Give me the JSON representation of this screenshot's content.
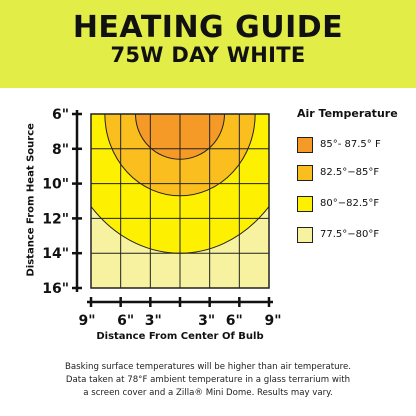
{
  "header": {
    "title": "HEATING GUIDE",
    "subtitle": "75W DAY WHITE",
    "background_color": "#e2ed48"
  },
  "chart_data": {
    "type": "heatmap",
    "ylabel": "Distance From Heat Source",
    "xlabel": "Distance From Center Of Bulb",
    "y_ticks": [
      "6\"",
      "8\"",
      "10\"",
      "12\"",
      "14\"",
      "16\""
    ],
    "y_values": [
      6,
      8,
      10,
      12,
      14,
      16
    ],
    "x_ticks": [
      "9\"",
      "6\"",
      "3\"",
      "3\"",
      "6\"",
      "9\""
    ],
    "x_values": [
      -9,
      -6,
      -3,
      3,
      6,
      9
    ],
    "ylim": [
      6,
      16
    ],
    "xlim": [
      -9,
      9
    ],
    "grid": true,
    "zones": [
      {
        "label": "85°- 87.5° F",
        "color": "#f59a26",
        "half_width_in": 4.5,
        "max_depth_in": 8.6
      },
      {
        "label": "82.5°−85°F",
        "color": "#fbbe1f",
        "half_width_in": 7.6,
        "max_depth_in": 10.7
      },
      {
        "label": "80°−82.5°F",
        "color": "#fdf000",
        "half_width_in": 9.0,
        "max_depth_in": 14.0
      },
      {
        "label": "77.5°−80°F",
        "color": "#f7f2a0",
        "half_width_in": 9.0,
        "max_depth_in": 16.0
      }
    ]
  },
  "legend": {
    "title": "Air Temperature",
    "items": [
      {
        "label": "85°- 87.5° F",
        "color": "#f59a26"
      },
      {
        "label": "82.5°−85°F",
        "color": "#fbbe1f"
      },
      {
        "label": "80°−82.5°F",
        "color": "#fdf000"
      },
      {
        "label": "77.5°−80°F",
        "color": "#f7f2a0"
      }
    ]
  },
  "footnote": {
    "line1": "Basking surface temperatures will be higher than air temperature.",
    "line2": "Data taken at 78°F ambient temperature in a glass terrarium with",
    "line3": "a screen cover and a Zilla® Mini Dome. Results may vary."
  }
}
